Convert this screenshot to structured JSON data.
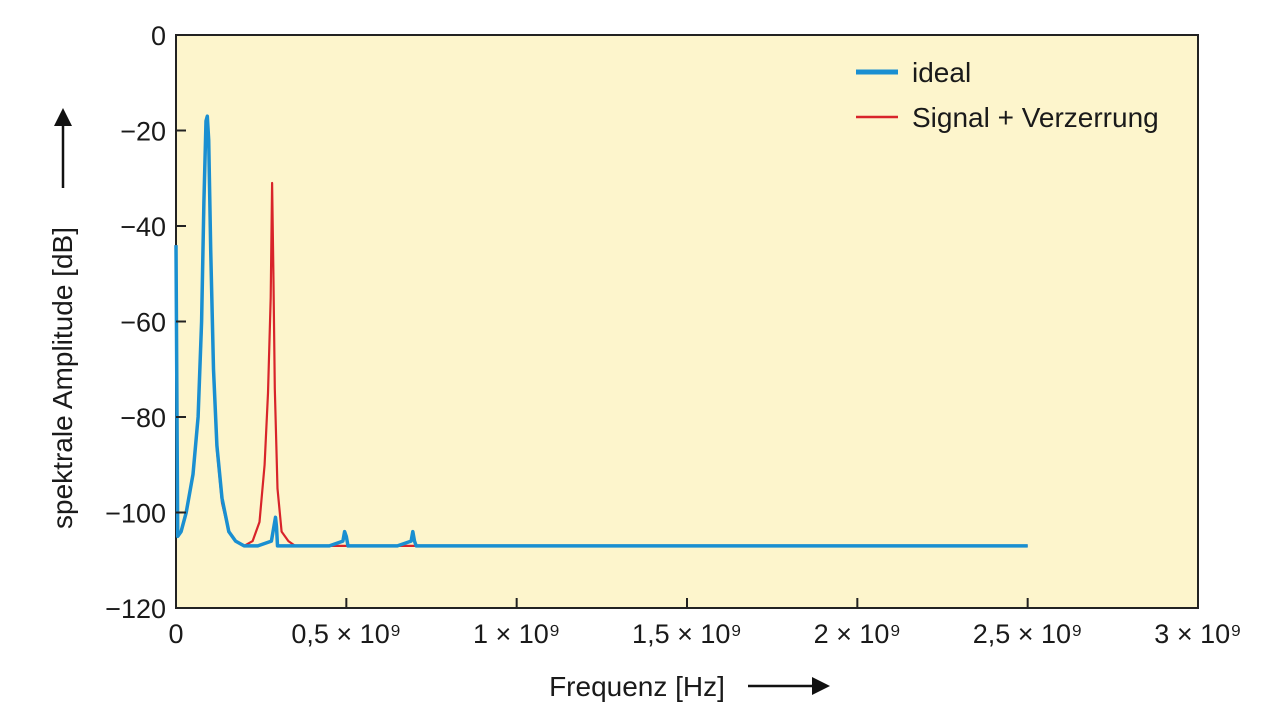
{
  "chart_data": {
    "type": "line",
    "xlabel": "Frequenz [Hz]",
    "ylabel": "spektrale Amplitude [dB]",
    "xlim": [
      0,
      3000000000
    ],
    "ylim": [
      -120,
      0
    ],
    "grid": false,
    "legend_position": "top-right",
    "x_ticks": [
      {
        "value": 0,
        "label": "0"
      },
      {
        "value": 500000000,
        "label": "0,5 × 10⁹"
      },
      {
        "value": 1000000000,
        "label": "1 × 10⁹"
      },
      {
        "value": 1500000000,
        "label": "1,5 × 10⁹"
      },
      {
        "value": 2000000000,
        "label": "2 × 10⁹"
      },
      {
        "value": 2500000000,
        "label": "2,5 × 10⁹"
      },
      {
        "value": 3000000000,
        "label": "3 × 10⁹"
      }
    ],
    "y_ticks": [
      {
        "value": 0,
        "label": "0"
      },
      {
        "value": -20,
        "label": "−20"
      },
      {
        "value": -40,
        "label": "−40"
      },
      {
        "value": -60,
        "label": "−60"
      },
      {
        "value": -80,
        "label": "−80"
      },
      {
        "value": -100,
        "label": "−100"
      },
      {
        "value": -120,
        "label": "−120"
      }
    ],
    "series": [
      {
        "name": "ideal",
        "color": "#1a8fd1",
        "x": [
          0,
          5000000,
          15000000,
          30000000,
          50000000,
          65000000,
          75000000,
          82000000,
          88000000,
          92000000,
          96000000,
          102000000,
          110000000,
          120000000,
          135000000,
          155000000,
          175000000,
          200000000,
          240000000,
          280000000,
          292000000,
          295000000,
          298000000,
          310000000,
          350000000,
          400000000,
          450000000,
          490000000,
          495000000,
          500000000,
          505000000,
          550000000,
          600000000,
          650000000,
          690000000,
          695000000,
          700000000,
          705000000,
          750000000,
          800000000,
          900000000,
          1000000000,
          1100000000,
          1200000000,
          1300000000,
          1400000000,
          1500000000,
          1600000000,
          1700000000,
          1800000000,
          1900000000,
          2000000000,
          2100000000,
          2200000000,
          2300000000,
          2400000000,
          2480000000,
          2500000000
        ],
        "y": [
          -44,
          -105,
          -104,
          -100,
          -92,
          -80,
          -60,
          -35,
          -18,
          -17,
          -22,
          -45,
          -70,
          -86,
          -97,
          -104,
          -106,
          -107,
          -107,
          -106,
          -101,
          -103,
          -107,
          -107,
          -107,
          -107,
          -107,
          -106,
          -104,
          -105,
          -107,
          -107,
          -107,
          -107,
          -106,
          -104,
          -106,
          -107,
          -107,
          -107,
          -107,
          -107,
          -107,
          -107,
          -107,
          -107,
          -107,
          -107,
          -107,
          -107,
          -107,
          -107,
          -107,
          -107,
          -107,
          -107,
          -107,
          -107
        ]
      },
      {
        "name": "Signal + Verzerrung",
        "color": "#d8242a",
        "x": [
          0,
          5000000,
          15000000,
          30000000,
          50000000,
          65000000,
          75000000,
          82000000,
          88000000,
          92000000,
          96000000,
          102000000,
          110000000,
          120000000,
          135000000,
          155000000,
          175000000,
          200000000,
          225000000,
          245000000,
          260000000,
          270000000,
          278000000,
          282000000,
          286000000,
          290000000,
          298000000,
          310000000,
          330000000,
          350000000,
          400000000,
          500000000,
          600000000,
          700000000,
          800000000,
          900000000,
          1000000000,
          1100000000,
          1200000000,
          1300000000,
          1400000000,
          1500000000,
          1600000000,
          1700000000,
          1800000000,
          1900000000,
          2000000000,
          2100000000,
          2200000000,
          2300000000,
          2400000000,
          2480000000,
          2500000000
        ],
        "y": [
          -44,
          -105,
          -104,
          -100,
          -92,
          -80,
          -62,
          -38,
          -19,
          -18,
          -23,
          -46,
          -71,
          -87,
          -98,
          -104,
          -106,
          -107,
          -106,
          -102,
          -90,
          -75,
          -55,
          -31,
          -50,
          -74,
          -95,
          -104,
          -106,
          -107,
          -107,
          -107,
          -107,
          -107,
          -107,
          -107,
          -107,
          -107,
          -107,
          -107,
          -107,
          -107,
          -107,
          -107,
          -107,
          -107,
          -107,
          -107,
          -107,
          -107,
          -107,
          -107,
          -107
        ]
      }
    ]
  }
}
